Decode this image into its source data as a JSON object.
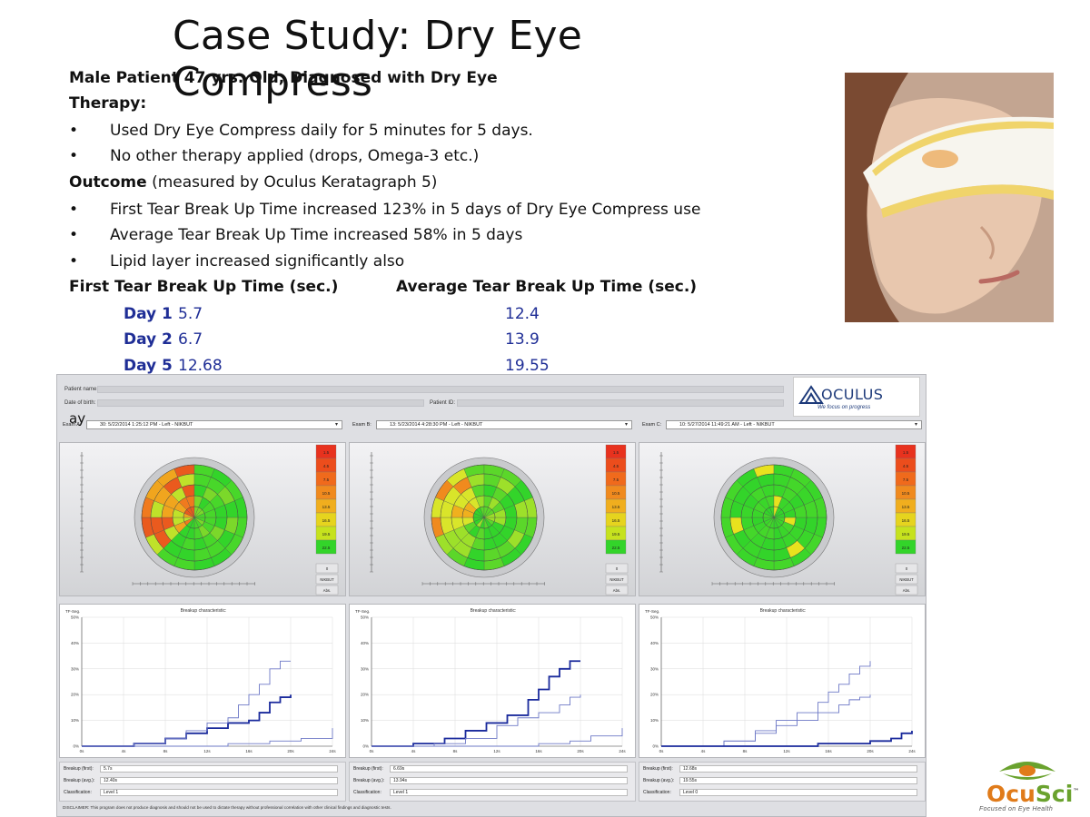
{
  "title": "Case Study: Dry Eye Compress",
  "patient_line": "Male Patient 47 yrs. Old,  Diagnosed with Dry Eye",
  "therapy_heading": "Therapy:",
  "therapy_items": [
    "Used Dry Eye Compress  daily for 5 minutes for 5 days.",
    "No other therapy applied (drops, Omega-3 etc.)"
  ],
  "outcome_heading": "Outcome",
  "outcome_note": " (measured by Oculus Keratagraph 5)",
  "outcome_items": [
    "First Tear Break Up Time increased 123% in 5 days of Dry Eye Compress use",
    "Average Tear Break Up Time increased 58% in 5 days",
    "Lipid layer increased significantly also"
  ],
  "first_heading": "First Tear Break Up Time (sec.)",
  "avg_heading": "Average Tear Break Up Time (sec.)",
  "days": [
    {
      "label": "Day 1",
      "first": "5.7",
      "avg": "12.4"
    },
    {
      "label": "Day 2",
      "first": "6.7",
      "avg": "13.9"
    },
    {
      "label": "Day 5",
      "first": "12.68",
      "avg": "19.55"
    }
  ],
  "stray_text": "ay",
  "oculus": {
    "patient_name_label": "Patient name:",
    "dob_label": "Date of birth:",
    "patient_id_label": "Patient ID:",
    "brand": "OCULUS",
    "tagline": "We focus on progress",
    "disclaimer": "DISCLAIMER: This program does not produce diagnosis and should not be used to dictate therapy without professional correlation with other clinical findings and diagnostic tests.",
    "scale_values": [
      "1.5",
      "4.5",
      "7.5",
      "10.5",
      "13.5",
      "16.5",
      "19.5",
      "22.5"
    ],
    "side_buttons": [
      "0",
      "NIKBUT",
      "Abs."
    ],
    "graph_title": "Breakup characteristic",
    "graph_ylabel": "TF-Seg.",
    "graph_yticks": [
      "50%",
      "40%",
      "30%",
      "20%",
      "10%",
      "0%"
    ],
    "graph_xticks": [
      "0s",
      "4s",
      "8s",
      "12s",
      "16s",
      "20s",
      "24s"
    ],
    "info_labels": [
      "Breakup (first):",
      "Breakup (avg.):",
      "Classification:"
    ],
    "exams": [
      {
        "label": "Exam A:",
        "select": "30: 5/22/2014 1:25:12 PM - Left - NIKBUT",
        "first": "5.7s",
        "avg": "12.40s",
        "class": "Level 1"
      },
      {
        "label": "Exam B:",
        "select": "13: 5/23/2014 4:28:30 PM - Left - NIKBUT",
        "first": "6.69s",
        "avg": "13.94s",
        "class": "Level 1"
      },
      {
        "label": "Exam C:",
        "select": "10: 5/27/2014 11:49:21 AM - Left - NIKBUT",
        "first": "12.68s",
        "avg": "19.55s",
        "class": "Level 0"
      }
    ]
  },
  "ocusci": {
    "name_a": "Ocu",
    "name_b": "Sci",
    "tagline": "Focused on Eye Health"
  },
  "colors": {
    "day_blue": "#1f2e96",
    "curve_dark": "#1a2a9c",
    "curve_light": "#6d78c6",
    "green": "#33d42a",
    "red": "#e8321e",
    "orange": "#f08a1e",
    "yellow": "#e6e61e"
  },
  "chart_data": [
    {
      "type": "line",
      "title": "Breakup characteristic",
      "ylabel": "TF-Seg.",
      "xlabel": "",
      "xlim": [
        0,
        24
      ],
      "ylim": [
        0,
        50
      ],
      "series": [
        {
          "x": [
            0,
            5,
            8,
            10,
            12,
            14,
            16,
            17,
            18,
            19,
            20
          ],
          "values": [
            0,
            1,
            3,
            5,
            7,
            9,
            10,
            13,
            17,
            19,
            20
          ]
        },
        {
          "x": [
            0,
            5,
            8,
            10,
            12,
            14,
            15,
            16,
            17,
            18,
            19,
            20
          ],
          "values": [
            0,
            1,
            3,
            6,
            9,
            11,
            16,
            20,
            24,
            30,
            33,
            33
          ]
        },
        {
          "x": [
            0,
            12,
            14,
            18,
            21,
            24
          ],
          "values": [
            0,
            0,
            1,
            2,
            3,
            7
          ]
        }
      ]
    },
    {
      "type": "line",
      "title": "Breakup characteristic",
      "ylabel": "TF-Seg.",
      "xlabel": "",
      "xlim": [
        0,
        24
      ],
      "ylim": [
        0,
        50
      ],
      "series": [
        {
          "x": [
            0,
            4,
            7,
            9,
            11,
            13,
            15,
            16,
            17,
            18,
            19,
            20
          ],
          "values": [
            0,
            1,
            3,
            6,
            9,
            12,
            18,
            22,
            27,
            30,
            33,
            33
          ]
        },
        {
          "x": [
            0,
            6,
            9,
            12,
            14,
            16,
            18,
            19,
            20
          ],
          "values": [
            0,
            1,
            3,
            8,
            11,
            13,
            16,
            19,
            20
          ]
        },
        {
          "x": [
            0,
            13,
            16,
            19,
            21,
            24
          ],
          "values": [
            0,
            0,
            1,
            2,
            4,
            7
          ]
        }
      ]
    },
    {
      "type": "line",
      "title": "Breakup characteristic",
      "ylabel": "TF-Seg.",
      "xlabel": "",
      "xlim": [
        0,
        24
      ],
      "ylim": [
        0,
        50
      ],
      "series": [
        {
          "x": [
            0,
            6,
            9,
            11,
            13,
            15,
            16,
            17,
            18,
            19,
            20
          ],
          "values": [
            0,
            2,
            6,
            10,
            13,
            17,
            21,
            24,
            28,
            31,
            33
          ]
        },
        {
          "x": [
            0,
            6,
            9,
            11,
            13,
            15,
            17,
            18,
            19,
            20
          ],
          "values": [
            0,
            2,
            5,
            8,
            10,
            13,
            16,
            18,
            19,
            20
          ]
        },
        {
          "x": [
            0,
            12,
            15,
            18,
            20,
            22,
            23,
            24
          ],
          "values": [
            0,
            0,
            1,
            1,
            2,
            3,
            5,
            6
          ]
        }
      ]
    }
  ]
}
